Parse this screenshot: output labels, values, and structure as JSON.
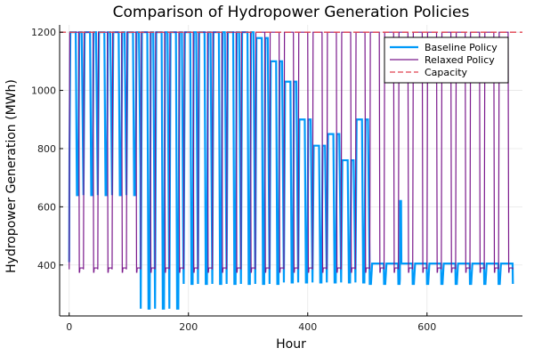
{
  "chart_data": {
    "type": "line",
    "title": "Comparison of Hydropower Generation Policies",
    "xlabel": "Hour",
    "ylabel": "Hydropower Generation (MWh)",
    "xlim": [
      -16,
      760
    ],
    "ylim": [
      225,
      1225
    ],
    "x_ticks": [
      0,
      200,
      400,
      600
    ],
    "x_tick_labels": [
      "0",
      "200",
      "400",
      "600"
    ],
    "y_ticks": [
      400,
      600,
      800,
      1000,
      1200
    ],
    "y_tick_labels": [
      "400",
      "600",
      "800",
      "1000",
      "1200"
    ],
    "grid": true,
    "legend_position": "top-right",
    "hours": 744,
    "series": [
      {
        "name": "Baseline Policy",
        "color": "#009af9",
        "style": "solid",
        "segments": [
          {
            "from_day": 0,
            "to_day": 5,
            "peak": 1200,
            "trough": 640,
            "start": 410
          },
          {
            "from_day": 5,
            "to_day": 8,
            "peak": 1200,
            "trough": 250
          },
          {
            "from_day": 8,
            "to_day": 13,
            "peak": 1200,
            "trough": 335
          },
          {
            "from_day": 13,
            "to_day": 15,
            "peak": 1200,
            "trough": 335,
            "extra_peaks": [
              1180,
              1100
            ]
          },
          {
            "from_day": 15,
            "to_day": 21,
            "peak": 900,
            "trough": 340,
            "extra_peaks": [
              1030,
              900,
              810,
              850,
              760
            ]
          },
          {
            "from_day": 21,
            "to_day": 31,
            "peak": 410,
            "trough": 335,
            "flat": 405,
            "spike_day": 23,
            "spike_value": 620
          }
        ]
      },
      {
        "name": "Relaxed Policy",
        "color": "#7b1a8c",
        "style": "solid",
        "peak": 1200,
        "trough": 385,
        "daily_cycle_hours": 24,
        "on_hours": 16
      },
      {
        "name": "Capacity",
        "color": "#e0424f",
        "style": "dashed",
        "value": 1200
      }
    ]
  }
}
